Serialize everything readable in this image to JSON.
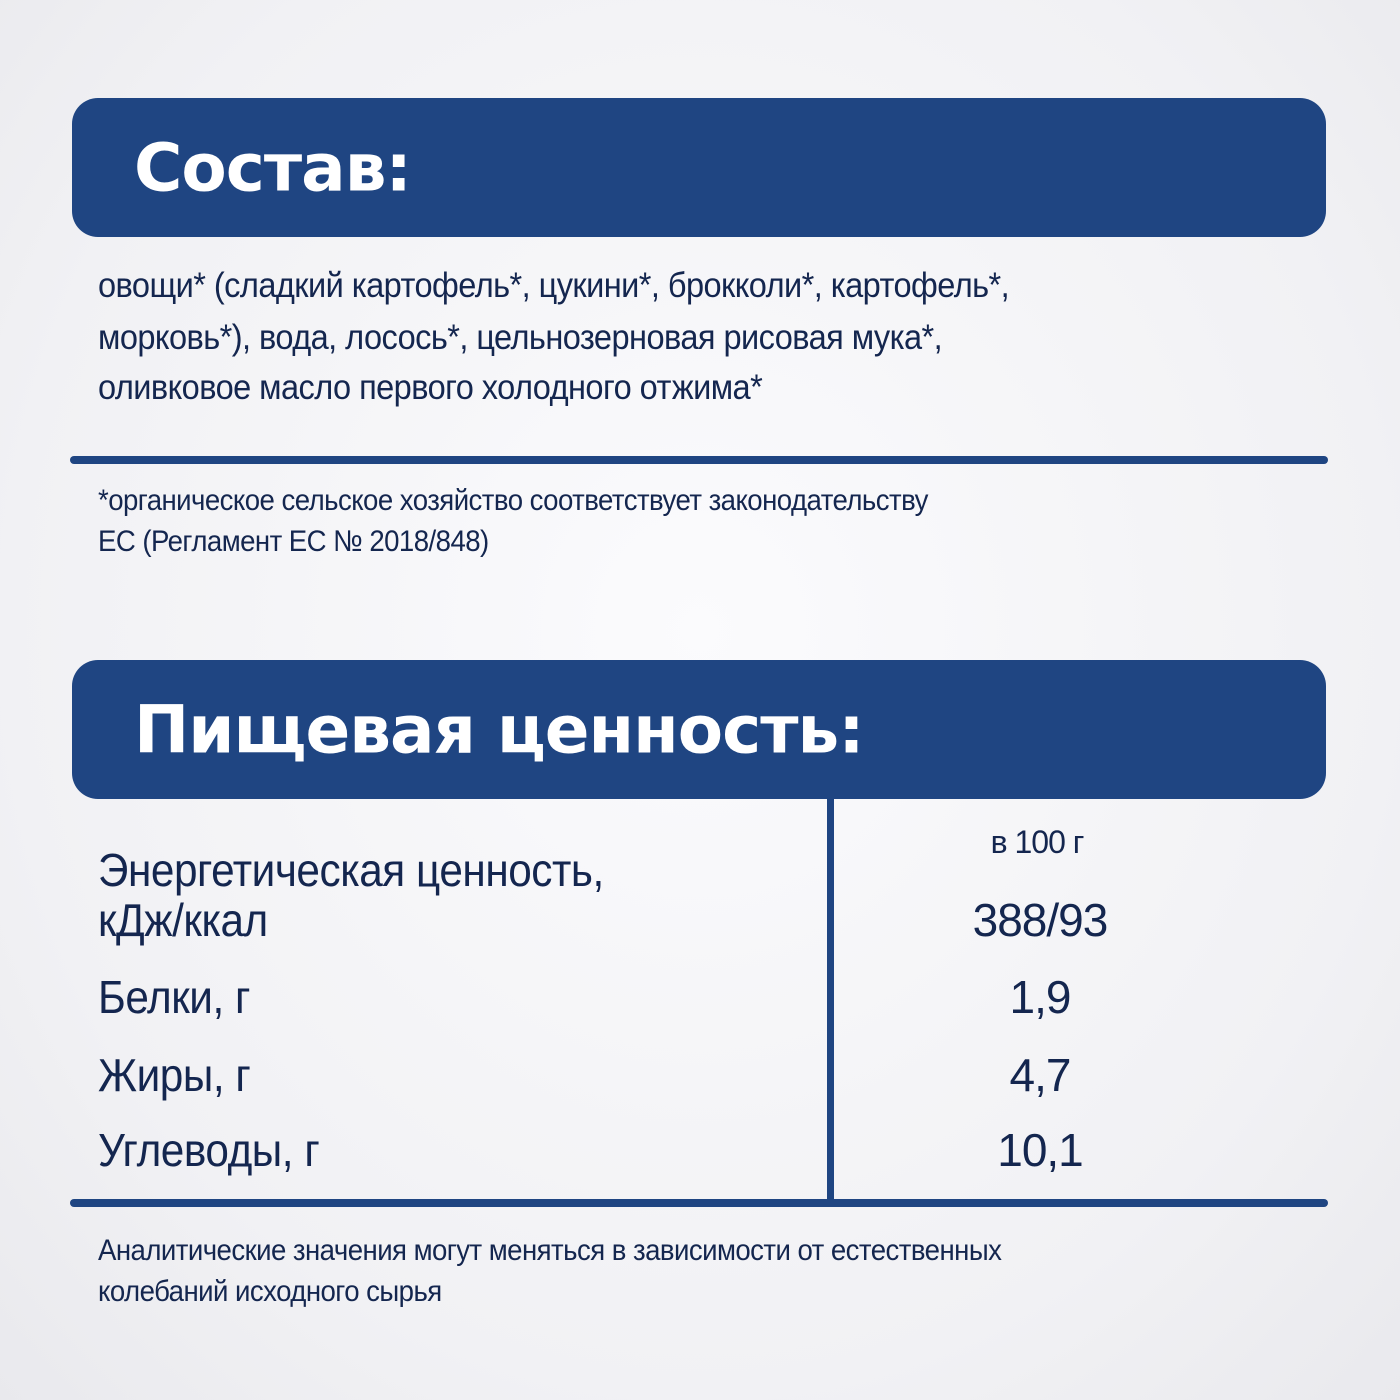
{
  "composition": {
    "title": "Состав:",
    "ingredients_lines": [
      "овощи* (сладкий картофель*, цукини*, брокколи*, картофель*,",
      "морковь*), вода, лосось*, цельнозерновая рисовая мука*,",
      "оливковое масло первого холодного отжима*"
    ],
    "footnote_lines": [
      "*органическое сельское хозяйство соответствует законодательству",
      "ЕС (Регламент ЕС № 2018/848)"
    ]
  },
  "nutrition": {
    "title": "Пищевая ценность:",
    "column_header": "в 100 г",
    "rows": [
      {
        "label_lines": [
          "Энергетическая ценность,",
          "кДж/ккал"
        ],
        "value": "388/93"
      },
      {
        "label": "Белки, г",
        "value": "1,9"
      },
      {
        "label": "Жиры, г",
        "value": "4,7"
      },
      {
        "label": "Углеводы, г",
        "value": "10,1"
      }
    ],
    "disclaimer_lines": [
      "Аналитические значения могут меняться в зависимости от естественных",
      "колебаний исходного сырья"
    ]
  },
  "colors": {
    "accent": "#1f4582",
    "text": "#14264f",
    "background": "#f1f1f4"
  }
}
